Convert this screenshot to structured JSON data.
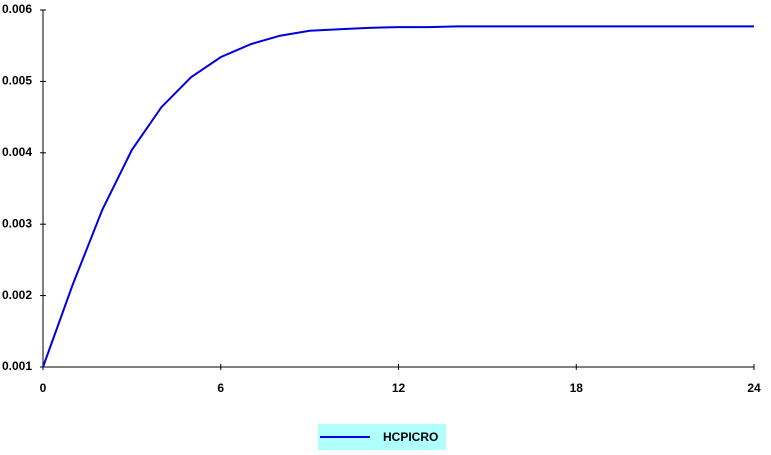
{
  "chart_data": {
    "type": "line",
    "x": [
      0,
      1,
      2,
      3,
      4,
      5,
      6,
      7,
      8,
      9,
      10,
      11,
      12,
      13,
      14,
      15,
      16,
      17,
      18,
      19,
      20,
      21,
      22,
      23,
      24
    ],
    "series": [
      {
        "name": "HCPICRO",
        "color": "#0000dd",
        "values": [
          0.001,
          0.00215,
          0.0032,
          0.00404,
          0.00464,
          0.00506,
          0.00534,
          0.00552,
          0.00564,
          0.00571,
          0.00573,
          0.00575,
          0.00576,
          0.00576,
          0.00577,
          0.00577,
          0.00577,
          0.00577,
          0.00577,
          0.00577,
          0.00577,
          0.00577,
          0.00577,
          0.00577,
          0.00577
        ]
      }
    ],
    "xlim": [
      0,
      24
    ],
    "xticks": [
      0,
      6,
      12,
      18,
      24
    ],
    "ylim": [
      0.001,
      0.006
    ],
    "yticks": [
      0.001,
      0.002,
      0.003,
      0.004,
      0.005,
      0.006
    ],
    "legend": "bottom"
  }
}
